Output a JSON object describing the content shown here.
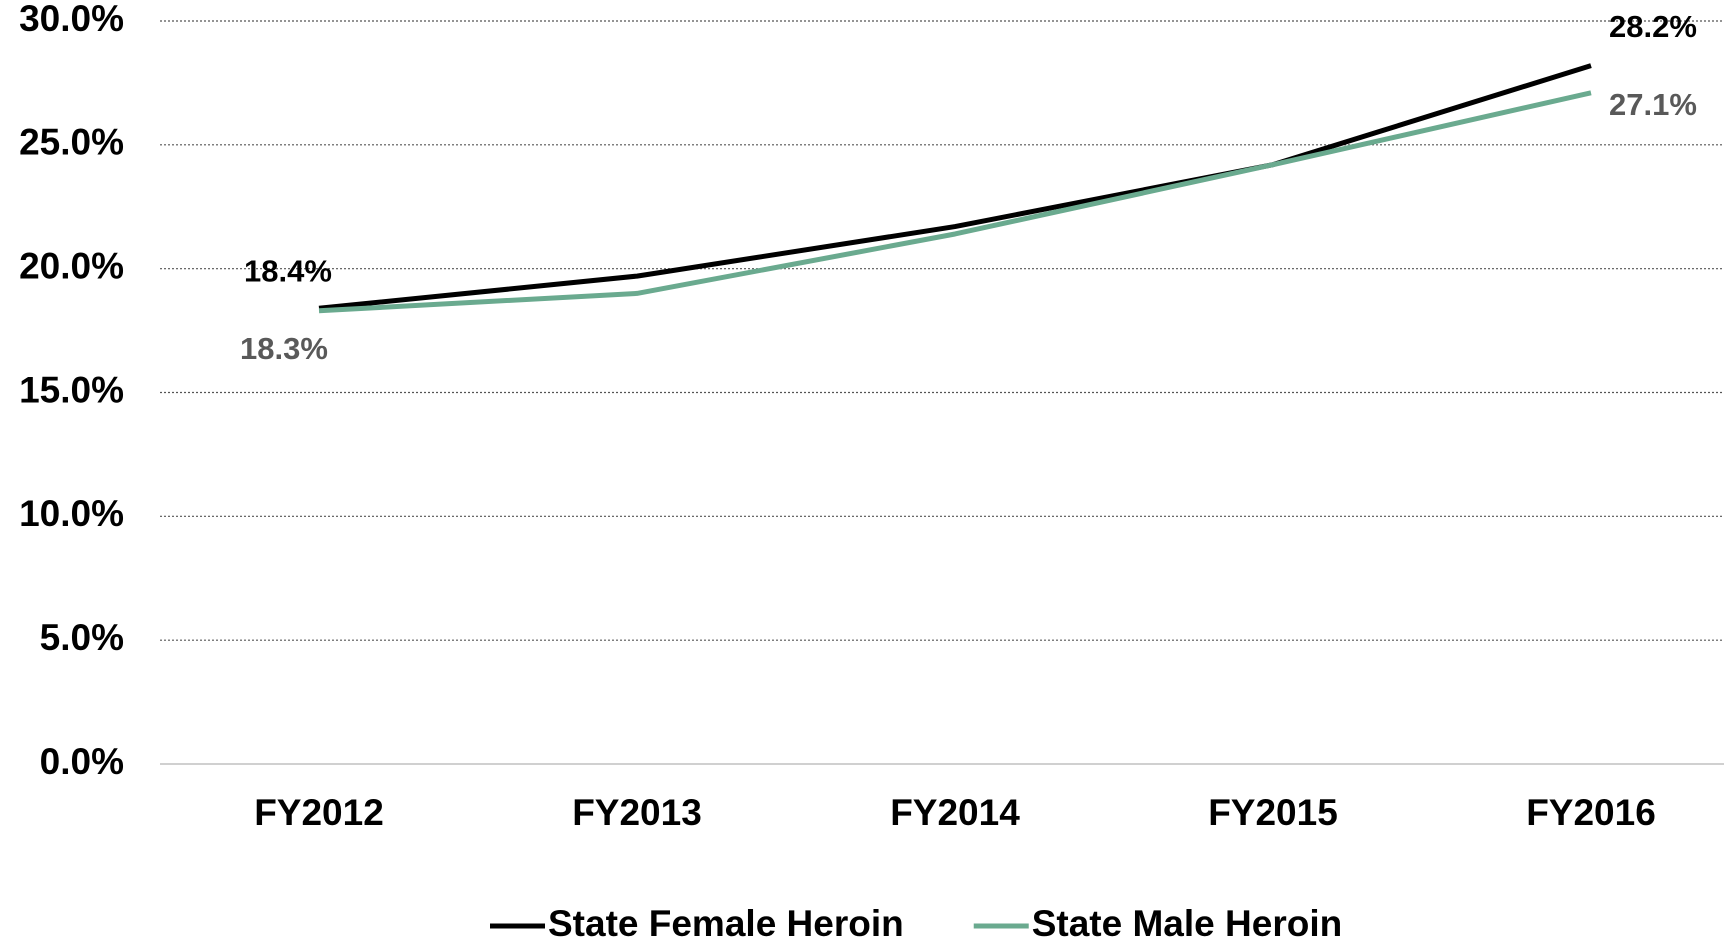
{
  "chart_data": {
    "type": "line",
    "categories": [
      "FY2012",
      "FY2013",
      "FY2014",
      "FY2015",
      "FY2016"
    ],
    "series": [
      {
        "name": "State Female Heroin",
        "color": "#000000",
        "label_color": "#000000",
        "values": [
          18.4,
          19.7,
          21.7,
          24.2,
          28.2
        ],
        "value_labels": [
          "18.4%",
          null,
          null,
          null,
          "28.2%"
        ]
      },
      {
        "name": "State Male Heroin",
        "color": "#6aaa8f",
        "label_color": "#595959",
        "values": [
          18.3,
          19.0,
          21.4,
          24.2,
          27.1
        ],
        "value_labels": [
          "18.3%",
          null,
          null,
          null,
          "27.1%"
        ]
      }
    ],
    "ylim": [
      0,
      30
    ],
    "yticks": [
      {
        "value": 0,
        "label": "0.0%"
      },
      {
        "value": 5,
        "label": "5.0%"
      },
      {
        "value": 10,
        "label": "10.0%"
      },
      {
        "value": 15,
        "label": "15.0%"
      },
      {
        "value": 20,
        "label": "20.0%"
      },
      {
        "value": 25,
        "label": "25.0%"
      },
      {
        "value": 30,
        "label": "30.0%"
      }
    ],
    "grid": true,
    "legend": "bottom"
  }
}
